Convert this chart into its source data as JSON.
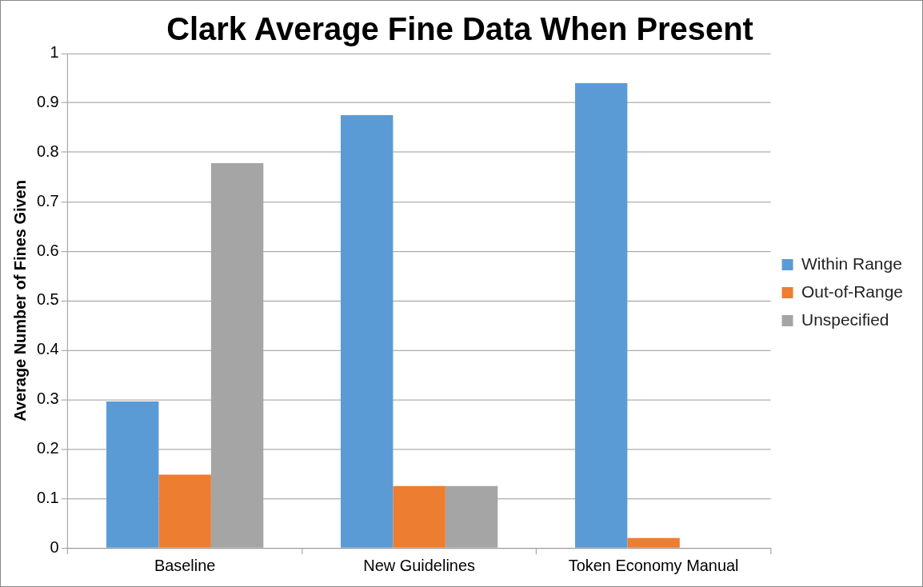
{
  "chart_data": {
    "type": "bar",
    "title": "Clark Average Fine Data When Present",
    "ylabel": "Average Number of Fines Given",
    "categories": [
      "Baseline",
      "New Guidelines",
      "Token Economy Manual"
    ],
    "series": [
      {
        "name": "Within Range",
        "color": "#5b9bd5",
        "values": [
          0.296,
          0.875,
          0.94
        ]
      },
      {
        "name": "Out-of-Range",
        "color": "#ed7d31",
        "values": [
          0.148,
          0.125,
          0.02
        ]
      },
      {
        "name": "Unspecified",
        "color": "#a5a5a5",
        "values": [
          0.778,
          0.125,
          0
        ]
      }
    ],
    "ylim": [
      0,
      1
    ],
    "yticks": [
      0,
      0.1,
      0.2,
      0.3,
      0.4,
      0.5,
      0.6,
      0.7,
      0.8,
      0.9,
      1
    ],
    "grid": "y",
    "legend": "right"
  }
}
